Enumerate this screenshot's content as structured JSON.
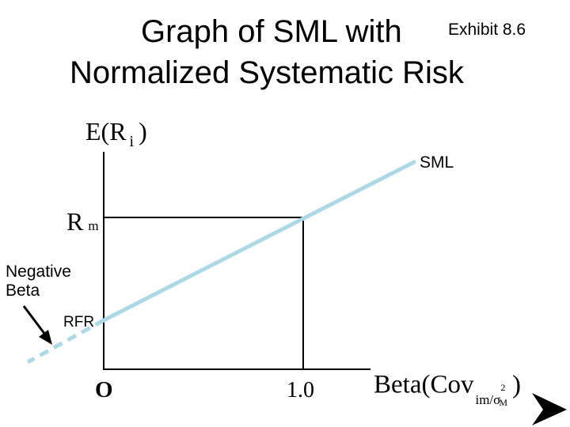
{
  "title": {
    "line1": "Graph of SML with",
    "line2": "Normalized Systematic Risk",
    "exhibit": "Exhibit 8.6"
  },
  "axes": {
    "y_label_main": "E(R",
    "y_label_sub": "i",
    "y_label_close": ")",
    "x_label_main": "Beta(Cov",
    "x_label_sub": "im/σ",
    "x_label_sup": "2",
    "x_label_sub_m": "M",
    "x_label_close": ")",
    "origin": "O",
    "x_tick": "1.0"
  },
  "labels": {
    "rm_main": "R",
    "rm_sub": "m",
    "sml": "SML",
    "negative_beta_line1": "Negative",
    "negative_beta_line2": "Beta",
    "rfr": "RFR"
  },
  "colors": {
    "line": "#add8e6",
    "axis": "#000000"
  },
  "icons": {
    "next": "play-arrow-icon"
  }
}
